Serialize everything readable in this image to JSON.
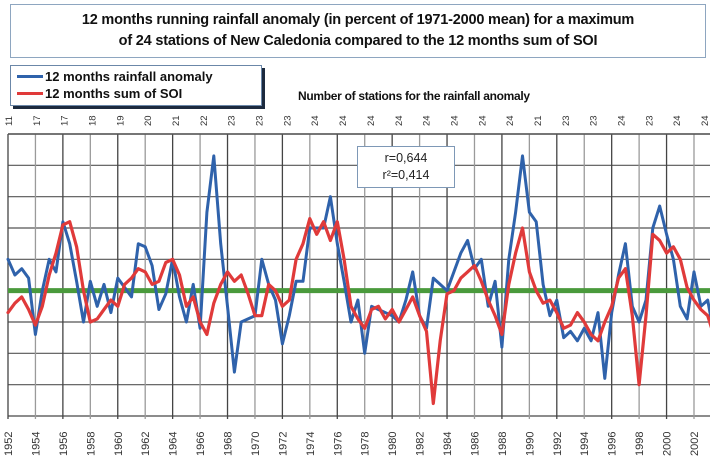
{
  "chart_data": {
    "type": "line",
    "title": "12 months running rainfall anomaly (in percent of 1971-2000 mean) for a maximum of 24 stations of New Caledonia compared to the 12 months sum of SOI",
    "title_lines": [
      "12 months running rainfall anomaly (in percent of 1971-2000 mean) for a maximum",
      "of 24 stations of New Caledonia compared to the 12 months sum of SOI"
    ],
    "xlabel": "",
    "ylabel": "",
    "y_units": "grid units (unlabeled axis; 0 = mean)",
    "xlim": [
      1952,
      2003.5
    ],
    "ylim": [
      -4,
      5
    ],
    "grid": true,
    "legend_position": "top-left",
    "x_ticks": [
      "1952",
      "1954",
      "1956",
      "1958",
      "1960",
      "1962",
      "1964",
      "1966",
      "1968",
      "1970",
      "1972",
      "1974",
      "1976",
      "1978",
      "1980",
      "1982",
      "1984",
      "1986",
      "1988",
      "1990",
      "1992",
      "1994",
      "1996",
      "1998",
      "2000",
      "2002"
    ],
    "secondary_axis": {
      "title": "Number of stations for the rainfall anomaly",
      "labels": [
        "11",
        "17",
        "17",
        "18",
        "19",
        "20",
        "21",
        "22",
        "23",
        "23",
        "23",
        "24",
        "24",
        "24",
        "24",
        "24",
        "24",
        "24",
        "24",
        "21",
        "23",
        "23",
        "24",
        "23",
        "24",
        "24"
      ]
    },
    "annotation": {
      "r": "r=0,644",
      "r2": "r²=0,414"
    },
    "baseline": {
      "value": 0,
      "color": "#4a9a3c"
    },
    "series": [
      {
        "name": "12 months rainfall anomaly",
        "color": "#2f62ab",
        "x": [
          1952,
          1952.5,
          1953,
          1953.5,
          1954,
          1954.5,
          1955,
          1955.5,
          1956,
          1956.5,
          1957,
          1957.5,
          1958,
          1958.5,
          1959,
          1959.5,
          1960,
          1961,
          1961.5,
          1962,
          1962.5,
          1963,
          1963.5,
          1964,
          1964.5,
          1965,
          1965.5,
          1966,
          1966.5,
          1967,
          1967.5,
          1968,
          1968.5,
          1969,
          1970,
          1970.5,
          1971,
          1971.5,
          1972,
          1972.5,
          1973,
          1973.5,
          1974,
          1975,
          1975.5,
          1976,
          1976.5,
          1977,
          1977.5,
          1978,
          1978.5,
          1979,
          1980,
          1980.5,
          1981,
          1981.5,
          1982,
          1982.5,
          1983,
          1983.5,
          1984,
          1985,
          1985.5,
          1986,
          1986.5,
          1987,
          1987.5,
          1988,
          1988.5,
          1989,
          1989.5,
          1990,
          1990.5,
          1991,
          1991.5,
          1992,
          1992.5,
          1993,
          1993.5,
          1994,
          1994.5,
          1995,
          1995.5,
          1996,
          1996.5,
          1997,
          1997.5,
          1998,
          1998.5,
          1999,
          1999.5,
          2000,
          2000.5,
          2001,
          2001.5,
          2002,
          2002.5,
          2003,
          2003.5
        ],
        "values": [
          1.0,
          0.5,
          0.7,
          0.4,
          -1.4,
          0.0,
          1.0,
          0.6,
          2.2,
          1.5,
          0.3,
          -1.0,
          0.3,
          -0.5,
          0.2,
          -0.7,
          0.4,
          -0.2,
          1.5,
          1.4,
          0.8,
          -0.6,
          -0.1,
          1.0,
          -0.2,
          -1.0,
          0.2,
          -1.2,
          2.5,
          4.3,
          1.5,
          -0.5,
          -2.6,
          -1.0,
          -0.8,
          1.0,
          0.2,
          -0.3,
          -1.7,
          -0.8,
          0.3,
          0.3,
          2.0,
          2.0,
          3.0,
          1.5,
          0.3,
          -1.0,
          -0.3,
          -2.0,
          -0.5,
          -0.6,
          -0.8,
          -1.0,
          -0.3,
          0.6,
          -0.8,
          -1.2,
          0.4,
          0.2,
          0.0,
          1.2,
          1.6,
          0.7,
          1.0,
          -0.5,
          0.3,
          -1.8,
          1.0,
          2.5,
          4.3,
          2.5,
          2.2,
          0.2,
          -0.8,
          -0.3,
          -1.5,
          -1.3,
          -1.6,
          -1.2,
          -1.6,
          -0.7,
          -2.8,
          -0.7,
          0.5,
          1.5,
          -0.5,
          -1.0,
          -0.3,
          2.0,
          2.7,
          1.8,
          1.0,
          -0.5,
          -0.9,
          0.6,
          -0.5,
          -0.3,
          -1.5
        ]
      },
      {
        "name": "12 months sum of SOI",
        "color": "#e03a3a",
        "x": [
          1952,
          1952.5,
          1953,
          1953.5,
          1954,
          1954.5,
          1955,
          1955.5,
          1956,
          1956.5,
          1957,
          1957.5,
          1958,
          1958.5,
          1959,
          1959.5,
          1960,
          1960.5,
          1961,
          1961.5,
          1962,
          1962.5,
          1963,
          1963.5,
          1964,
          1964.5,
          1965,
          1965.5,
          1966,
          1966.5,
          1967,
          1967.5,
          1968,
          1968.5,
          1969,
          1969.5,
          1970,
          1970.5,
          1971,
          1971.5,
          1972,
          1972.5,
          1973,
          1973.5,
          1974,
          1974.5,
          1975,
          1975.5,
          1976,
          1976.5,
          1977,
          1977.5,
          1978,
          1978.5,
          1979,
          1979.5,
          1980,
          1980.5,
          1981,
          1981.5,
          1982,
          1982.5,
          1983,
          1983.5,
          1984,
          1984.5,
          1985,
          1985.5,
          1986,
          1986.5,
          1987,
          1987.5,
          1988,
          1988.5,
          1989,
          1989.5,
          1990,
          1990.5,
          1991,
          1991.5,
          1992,
          1992.5,
          1993,
          1993.5,
          1994,
          1994.5,
          1995,
          1995.5,
          1996,
          1996.5,
          1997,
          1997.5,
          1998,
          1998.5,
          1999,
          1999.5,
          2000,
          2000.5,
          2001,
          2001.5,
          2002,
          2002.5,
          2003,
          2003.5
        ],
        "values": [
          -0.7,
          -0.4,
          -0.2,
          -0.6,
          -1.1,
          -0.5,
          0.5,
          1.2,
          2.1,
          2.2,
          1.4,
          0.0,
          -1.0,
          -0.9,
          -0.6,
          -0.3,
          -0.5,
          0.2,
          0.4,
          0.7,
          0.6,
          0.2,
          0.3,
          0.9,
          1.0,
          0.5,
          -0.5,
          -0.2,
          -1.0,
          -1.4,
          -0.4,
          0.2,
          0.6,
          0.3,
          0.5,
          -0.1,
          -0.8,
          -0.8,
          0.2,
          0.0,
          -0.5,
          -0.3,
          1.0,
          1.5,
          2.3,
          1.8,
          2.2,
          1.6,
          2.2,
          1.0,
          -0.5,
          -0.9,
          -1.2,
          -0.6,
          -0.5,
          -0.9,
          -0.6,
          -1.0,
          -0.6,
          -0.2,
          -0.8,
          -1.3,
          -3.6,
          -1.6,
          -0.1,
          0.0,
          0.4,
          0.6,
          0.8,
          0.3,
          -0.3,
          -0.8,
          -1.4,
          0.2,
          1.2,
          2.0,
          0.6,
          0.0,
          -0.4,
          -0.3,
          -0.7,
          -1.2,
          -1.1,
          -0.7,
          -1.0,
          -1.4,
          -1.6,
          -1.0,
          -0.5,
          0.4,
          0.7,
          -0.8,
          -3.0,
          -0.8,
          1.8,
          1.6,
          1.2,
          1.4,
          1.0,
          0.1,
          -0.3,
          -0.6,
          -0.8,
          -1.5
        ]
      }
    ]
  },
  "legend": {
    "items": [
      {
        "label": "12 months rainfall anomaly",
        "color": "#2f62ab"
      },
      {
        "label": "12 months sum of SOI",
        "color": "#e03a3a"
      }
    ]
  }
}
